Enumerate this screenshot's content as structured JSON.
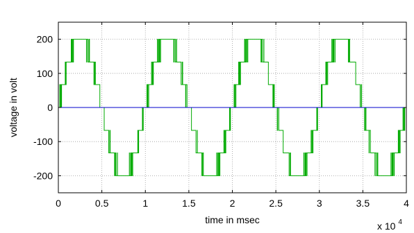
{
  "chart_data": {
    "type": "line",
    "title": "",
    "xlabel": "time in msec",
    "ylabel": "voltage in volt",
    "x_multiplier": {
      "base": "x 10",
      "exponent": "4"
    },
    "xlim": [
      0,
      4
    ],
    "ylim": [
      -250,
      250
    ],
    "xticks": [
      0,
      0.5,
      1,
      1.5,
      2,
      2.5,
      3,
      3.5,
      4
    ],
    "xtick_labels": [
      "0",
      "0.5",
      "1",
      "1.5",
      "2",
      "2.5",
      "3",
      "3.5",
      "4"
    ],
    "yticks": [
      200,
      100,
      0,
      -100,
      -200
    ],
    "ytick_labels": [
      "200",
      "100",
      "0",
      "-100",
      "-200"
    ],
    "grid": true,
    "series": [
      {
        "color": "#00aa00",
        "kind": "multilevel-inverter-output",
        "period": 1,
        "levels": [
          -200,
          -133,
          -67,
          0,
          67,
          133,
          200
        ]
      },
      {
        "color": "#0000cc",
        "kind": "reference",
        "values": [
          0,
          0
        ]
      }
    ]
  }
}
